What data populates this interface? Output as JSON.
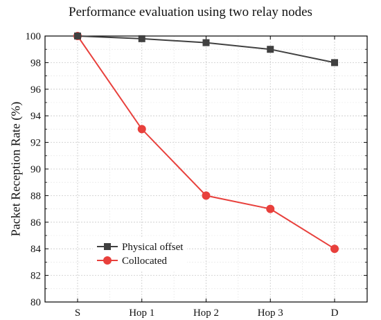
{
  "chart_data": {
    "type": "line",
    "title": "Performance evaluation using two relay nodes",
    "xlabel": "",
    "ylabel": "Packet Reception Rate (%)",
    "categories": [
      "S",
      "Hop 1",
      "Hop 2",
      "Hop 3",
      "D"
    ],
    "ylim": [
      80,
      100
    ],
    "yticks": [
      80,
      82,
      84,
      86,
      88,
      90,
      92,
      94,
      96,
      98,
      100
    ],
    "grid": true,
    "legend_position": "bottom-left",
    "series": [
      {
        "name": "Physical offset",
        "values": [
          100,
          99.8,
          99.5,
          99,
          98
        ],
        "color": "#404040",
        "marker": "square"
      },
      {
        "name": "Collocated",
        "values": [
          100,
          93,
          88,
          87,
          84
        ],
        "color": "#e8403c",
        "marker": "circle"
      }
    ]
  }
}
